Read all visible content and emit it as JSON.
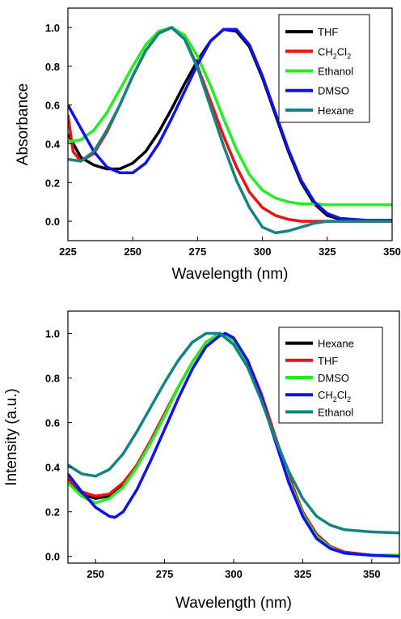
{
  "chart_data": [
    {
      "type": "line",
      "title": "",
      "xlabel": "Wavelength (nm)",
      "ylabel": "Absorbance",
      "xlim": [
        225,
        350
      ],
      "ylim": [
        -0.1,
        1.1
      ],
      "xticks": [
        "225",
        "250",
        "275",
        "300",
        "325",
        "350"
      ],
      "yticks": [
        "0.0",
        "0.2",
        "0.4",
        "0.6",
        "0.8",
        "1.0"
      ],
      "grid": false,
      "legend_position": "top-right",
      "series": [
        {
          "name": "THF",
          "name_base": "THF",
          "name_sub": "",
          "name_tail": "",
          "color": "#000000",
          "x": [
            225,
            230,
            235,
            240,
            245,
            250,
            255,
            260,
            265,
            270,
            275,
            280,
            285,
            290,
            295,
            300,
            305,
            310,
            315,
            320,
            325,
            330,
            335,
            340,
            345,
            350
          ],
          "y": [
            0.45,
            0.33,
            0.29,
            0.27,
            0.27,
            0.3,
            0.36,
            0.46,
            0.58,
            0.71,
            0.83,
            0.93,
            0.99,
            0.98,
            0.9,
            0.74,
            0.55,
            0.36,
            0.2,
            0.09,
            0.03,
            0.01,
            0.0,
            0.0,
            0.0,
            0.0
          ]
        },
        {
          "name": "CH2Cl2",
          "name_base": "CH",
          "name_sub": "2",
          "name_tail": "Cl",
          "name_sub2": "2",
          "color": "#ee1111",
          "x": [
            225,
            227,
            230,
            235,
            240,
            245,
            250,
            255,
            260,
            265,
            270,
            275,
            280,
            285,
            290,
            295,
            300,
            305,
            310,
            315,
            320,
            325,
            330,
            340,
            350
          ],
          "y": [
            0.55,
            0.36,
            0.31,
            0.35,
            0.46,
            0.6,
            0.75,
            0.88,
            0.97,
            1.0,
            0.94,
            0.8,
            0.62,
            0.44,
            0.28,
            0.15,
            0.07,
            0.03,
            0.01,
            0.0,
            0.0,
            0.0,
            0.0,
            0.0,
            0.0
          ]
        },
        {
          "name": "Ethanol",
          "name_base": "Ethanol",
          "name_sub": "",
          "name_tail": "",
          "color": "#22ee22",
          "x": [
            225,
            230,
            235,
            240,
            245,
            250,
            255,
            260,
            265,
            270,
            275,
            280,
            285,
            290,
            295,
            300,
            305,
            310,
            315,
            320,
            325,
            330,
            340,
            350
          ],
          "y": [
            0.41,
            0.42,
            0.47,
            0.56,
            0.68,
            0.8,
            0.91,
            0.98,
            1.0,
            0.96,
            0.85,
            0.7,
            0.53,
            0.37,
            0.24,
            0.16,
            0.12,
            0.1,
            0.09,
            0.09,
            0.085,
            0.085,
            0.085,
            0.085
          ]
        },
        {
          "name": "DMSO",
          "name_base": "DMSO",
          "name_sub": "",
          "name_tail": "",
          "color": "#1111ee",
          "x": [
            225,
            230,
            235,
            240,
            245,
            250,
            255,
            260,
            265,
            270,
            275,
            280,
            285,
            290,
            295,
            300,
            305,
            310,
            315,
            320,
            325,
            330,
            340,
            350
          ],
          "y": [
            0.6,
            0.48,
            0.36,
            0.28,
            0.25,
            0.25,
            0.3,
            0.4,
            0.53,
            0.67,
            0.81,
            0.93,
            0.99,
            0.99,
            0.91,
            0.75,
            0.56,
            0.37,
            0.21,
            0.1,
            0.04,
            0.015,
            0.005,
            0.005
          ]
        },
        {
          "name": "Hexane",
          "name_base": "Hexane",
          "name_sub": "",
          "name_tail": "",
          "color": "#138484",
          "x": [
            225,
            230,
            235,
            240,
            245,
            250,
            255,
            260,
            265,
            270,
            275,
            280,
            285,
            290,
            295,
            300,
            305,
            310,
            315,
            320,
            325,
            330,
            340,
            350
          ],
          "y": [
            0.32,
            0.31,
            0.36,
            0.47,
            0.6,
            0.75,
            0.88,
            0.97,
            1.0,
            0.94,
            0.79,
            0.59,
            0.39,
            0.21,
            0.07,
            -0.03,
            -0.06,
            -0.05,
            -0.03,
            -0.01,
            0.0,
            0.0,
            0.0,
            0.0
          ]
        }
      ]
    },
    {
      "type": "line",
      "title": "",
      "xlabel": "Wavelength (nm)",
      "ylabel": "Intensity (a.u.)",
      "xlim": [
        240,
        360
      ],
      "ylim": [
        -0.03,
        1.1
      ],
      "xticks": [
        "250",
        "275",
        "300",
        "325",
        "350"
      ],
      "yticks": [
        "0.0",
        "0.2",
        "0.4",
        "0.6",
        "0.8",
        "1.0"
      ],
      "grid": false,
      "legend_position": "top-right",
      "series": [
        {
          "name": "Hexane",
          "name_base": "Hexane",
          "name_sub": "",
          "name_tail": "",
          "color": "#000000",
          "x": [
            240,
            245,
            250,
            255,
            260,
            265,
            270,
            275,
            280,
            285,
            290,
            295,
            300,
            305,
            310,
            315,
            320,
            325,
            330,
            335,
            340,
            350,
            360
          ],
          "y": [
            0.35,
            0.28,
            0.26,
            0.27,
            0.32,
            0.41,
            0.52,
            0.64,
            0.76,
            0.87,
            0.96,
            1.0,
            0.97,
            0.87,
            0.71,
            0.52,
            0.34,
            0.19,
            0.09,
            0.04,
            0.015,
            0.005,
            0.005
          ]
        },
        {
          "name": "THF",
          "name_base": "THF",
          "name_sub": "",
          "name_tail": "",
          "color": "#ee1111",
          "x": [
            240,
            245,
            250,
            255,
            260,
            265,
            270,
            275,
            280,
            285,
            290,
            295,
            300,
            305,
            310,
            315,
            320,
            325,
            330,
            335,
            340,
            350,
            360
          ],
          "y": [
            0.35,
            0.29,
            0.27,
            0.28,
            0.33,
            0.41,
            0.52,
            0.64,
            0.76,
            0.87,
            0.96,
            1.0,
            0.97,
            0.88,
            0.73,
            0.54,
            0.36,
            0.2,
            0.1,
            0.045,
            0.02,
            0.005,
            0.005
          ]
        },
        {
          "name": "DMSO",
          "name_base": "DMSO",
          "name_sub": "",
          "name_tail": "",
          "color": "#22ee22",
          "x": [
            240,
            245,
            250,
            255,
            260,
            265,
            270,
            275,
            280,
            285,
            290,
            295,
            300,
            305,
            310,
            315,
            320,
            325,
            330,
            335,
            340,
            350,
            360
          ],
          "y": [
            0.33,
            0.27,
            0.24,
            0.26,
            0.31,
            0.4,
            0.51,
            0.63,
            0.76,
            0.87,
            0.96,
            1.0,
            0.97,
            0.87,
            0.71,
            0.52,
            0.34,
            0.19,
            0.09,
            0.04,
            0.015,
            0.005,
            0.005
          ]
        },
        {
          "name": "CH2Cl2",
          "name_base": "CH",
          "name_sub": "2",
          "name_tail": "Cl",
          "name_sub2": "2",
          "color": "#1111ee",
          "x": [
            240,
            245,
            250,
            255,
            257,
            260,
            265,
            270,
            275,
            280,
            285,
            290,
            295,
            297,
            300,
            305,
            310,
            315,
            320,
            325,
            330,
            335,
            340,
            350,
            360
          ],
          "y": [
            0.37,
            0.29,
            0.22,
            0.18,
            0.175,
            0.2,
            0.3,
            0.43,
            0.57,
            0.71,
            0.84,
            0.94,
            0.99,
            1.0,
            0.98,
            0.88,
            0.72,
            0.52,
            0.33,
            0.18,
            0.08,
            0.035,
            0.015,
            0.005,
            0.0
          ]
        },
        {
          "name": "Ethanol",
          "name_base": "Ethanol",
          "name_sub": "",
          "name_tail": "",
          "color": "#138484",
          "x": [
            240,
            245,
            250,
            255,
            260,
            265,
            270,
            275,
            280,
            285,
            290,
            295,
            300,
            305,
            310,
            315,
            320,
            325,
            330,
            335,
            340,
            350,
            360
          ],
          "y": [
            0.41,
            0.37,
            0.36,
            0.39,
            0.46,
            0.56,
            0.67,
            0.78,
            0.88,
            0.96,
            1.0,
            1.0,
            0.95,
            0.85,
            0.7,
            0.53,
            0.38,
            0.26,
            0.18,
            0.14,
            0.12,
            0.11,
            0.105
          ]
        }
      ]
    }
  ]
}
